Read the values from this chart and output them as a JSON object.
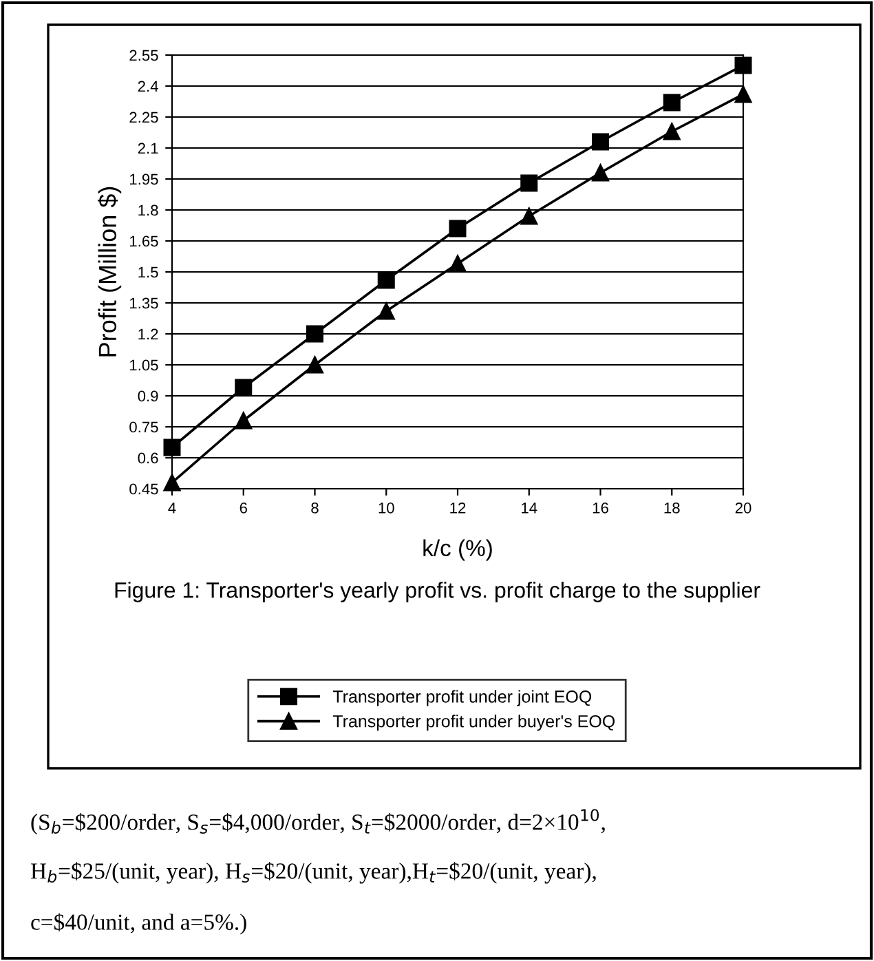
{
  "chart_data": {
    "type": "line",
    "title": "Figure 1: Transporter's yearly profit vs. profit charge to the supplier",
    "xlabel": "k/c (%)",
    "ylabel": "Profit (Million $)",
    "x": [
      4,
      6,
      8,
      10,
      12,
      14,
      16,
      18,
      20
    ],
    "series": [
      {
        "name": "Transporter profit under joint EOQ",
        "color": "#000000",
        "marker": "square",
        "values": [
          0.65,
          0.94,
          1.2,
          1.46,
          1.71,
          1.93,
          2.13,
          2.32,
          2.5
        ]
      },
      {
        "name": "Transporter profit under buyer's EOQ",
        "color": "#000000",
        "marker": "triangle",
        "values": [
          0.48,
          0.78,
          1.05,
          1.31,
          1.54,
          1.77,
          1.98,
          2.18,
          2.36
        ]
      }
    ],
    "xlim": [
      4,
      20
    ],
    "xticks": [
      4,
      6,
      8,
      10,
      12,
      14,
      16,
      18,
      20
    ],
    "ylim": [
      0.45,
      2.55
    ],
    "yticks": [
      0.45,
      0.6,
      0.75,
      0.9,
      1.05,
      1.2,
      1.35,
      1.5,
      1.65,
      1.8,
      1.95,
      2.1,
      2.25,
      2.4,
      2.55
    ],
    "grid": "y",
    "legend": "bottom",
    "line_style": "solid",
    "annotations": [
      "(S$_{b}$=$200/order, S$_{s}$=$4,000/order, S$_{t}$=$2000/order, d=2×10$^{10}$,",
      "H$_{b}$=$25/(unit, year), H$_{s}$=$20/(unit, year),H$_{t}$=$20/(unit, year),",
      "c=$40/unit, and a=5%.)"
    ]
  }
}
